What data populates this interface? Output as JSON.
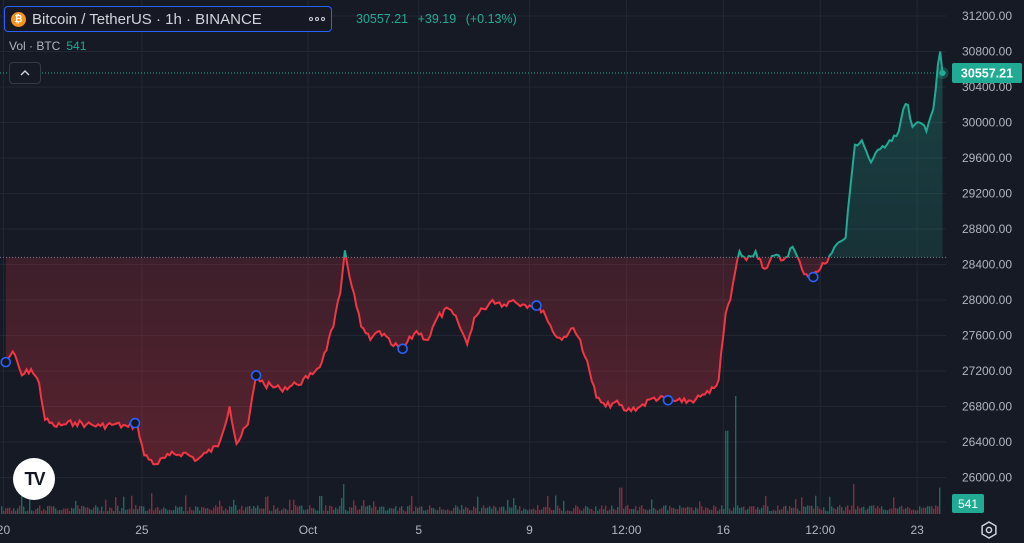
{
  "symbol": {
    "title": "Bitcoin / TetherUS · 1h · BINANCE",
    "coin_icon_glyph": "₿",
    "coin_color": "#f7931a"
  },
  "price_header": {
    "last": "30557.21",
    "change": "+39.19",
    "change_pct": "(+0.13%)"
  },
  "volume_legend": {
    "label": "Vol · BTC",
    "value": "541"
  },
  "logo": {
    "text": "TV"
  },
  "colors": {
    "up": "#22ab94",
    "down": "#f23645",
    "background": "#161a25",
    "grid": "#222733",
    "text": "#d1d4dc",
    "accent": "#2962ff"
  },
  "chart_data": {
    "type": "baseline-line",
    "baseline": 28480,
    "ylim": [
      25700,
      31350
    ],
    "y_ticks": [
      26000,
      26400,
      26800,
      27200,
      27600,
      28000,
      28400,
      28800,
      29200,
      29600,
      30000,
      30400,
      30800,
      31200
    ],
    "y_tick_labels": [
      "26000.00",
      "26400.00",
      "26800.00",
      "27200.00",
      "27600.00",
      "28000.00",
      "28400.00",
      "28800.00",
      "29200.00",
      "29600.00",
      "30000.00",
      "30400.00",
      "30800.00",
      "31200.00"
    ],
    "x_tick_labels": [
      "20",
      "25",
      "Oct",
      "5",
      "9",
      "12:00",
      "16",
      "12:00",
      "23"
    ],
    "x_tick_dates": [
      "2023-09-20",
      "2023-09-25",
      "2023-10-01",
      "2023-10-05",
      "2023-10-09",
      "2023-10-12 12:00",
      "2023-10-16",
      "2023-10-19 12:00",
      "2023-10-23"
    ],
    "x_range": [
      "2023-09-19 21:00",
      "2023-10-24 01:00"
    ],
    "last_price": 30557.21,
    "last_price_label": "30557.21",
    "volume_label": "541",
    "series": [
      {
        "points": [
          [
            "2023-09-20 02:00",
            27300
          ],
          [
            "2023-09-20 08:00",
            27420
          ],
          [
            "2023-09-20 16:00",
            27150
          ],
          [
            "2023-09-21 00:00",
            27220
          ],
          [
            "2023-09-21 07:00",
            27060
          ],
          [
            "2023-09-21 12:00",
            26650
          ],
          [
            "2023-09-21 20:00",
            26580
          ],
          [
            "2023-09-22 06:00",
            26600
          ],
          [
            "2023-09-22 14:00",
            26620
          ],
          [
            "2023-09-23 00:00",
            26600
          ],
          [
            "2023-09-23 12:00",
            26580
          ],
          [
            "2023-09-24 00:00",
            26600
          ],
          [
            "2023-09-24 12:00",
            26570
          ],
          [
            "2023-09-24 20:00",
            26600
          ],
          [
            "2023-09-25 02:00",
            26250
          ],
          [
            "2023-09-25 12:00",
            26150
          ],
          [
            "2023-09-26 00:00",
            26250
          ],
          [
            "2023-09-26 12:00",
            26280
          ],
          [
            "2023-09-27 00:00",
            26200
          ],
          [
            "2023-09-27 08:00",
            26280
          ],
          [
            "2023-09-27 18:00",
            26350
          ],
          [
            "2023-09-28 04:00",
            26800
          ],
          [
            "2023-09-28 10:00",
            26380
          ],
          [
            "2023-09-28 20:00",
            26600
          ],
          [
            "2023-09-29 03:00",
            27150
          ],
          [
            "2023-09-29 10:00",
            27050
          ],
          [
            "2023-09-30 00:00",
            27000
          ],
          [
            "2023-09-30 14:00",
            27050
          ],
          [
            "2023-10-01 00:00",
            27120
          ],
          [
            "2023-10-01 12:00",
            27300
          ],
          [
            "2023-10-01 22:00",
            27700
          ],
          [
            "2023-10-02 04:00",
            28080
          ],
          [
            "2023-10-02 08:00",
            28560
          ],
          [
            "2023-10-02 14:00",
            28150
          ],
          [
            "2023-10-02 22:00",
            27700
          ],
          [
            "2023-10-03 06:00",
            27550
          ],
          [
            "2023-10-03 14:00",
            27650
          ],
          [
            "2023-10-04 00:00",
            27500
          ],
          [
            "2023-10-04 10:00",
            27450
          ],
          [
            "2023-10-04 22:00",
            27650
          ],
          [
            "2023-10-05 08:00",
            27550
          ],
          [
            "2023-10-05 16:00",
            27800
          ],
          [
            "2023-10-06 02:00",
            27900
          ],
          [
            "2023-10-06 10:00",
            27750
          ],
          [
            "2023-10-06 18:00",
            27500
          ],
          [
            "2023-10-07 00:00",
            27800
          ],
          [
            "2023-10-07 08:00",
            27900
          ],
          [
            "2023-10-07 16:00",
            28000
          ],
          [
            "2023-10-08 02:00",
            27950
          ],
          [
            "2023-10-08 10:00",
            28000
          ],
          [
            "2023-10-08 18:00",
            27950
          ],
          [
            "2023-10-09 04:00",
            27950
          ],
          [
            "2023-10-09 12:00",
            27880
          ],
          [
            "2023-10-09 20:00",
            27650
          ],
          [
            "2023-10-10 04:00",
            27550
          ],
          [
            "2023-10-10 12:00",
            27680
          ],
          [
            "2023-10-10 20:00",
            27550
          ],
          [
            "2023-10-11 04:00",
            27200
          ],
          [
            "2023-10-11 10:00",
            26900
          ],
          [
            "2023-10-11 18:00",
            26800
          ],
          [
            "2023-10-12 02:00",
            26850
          ],
          [
            "2023-10-12 12:00",
            26750
          ],
          [
            "2023-10-13 00:00",
            26800
          ],
          [
            "2023-10-13 12:00",
            26900
          ],
          [
            "2023-10-14 00:00",
            26870
          ],
          [
            "2023-10-14 12:00",
            26850
          ],
          [
            "2023-10-15 00:00",
            26880
          ],
          [
            "2023-10-15 12:00",
            26950
          ],
          [
            "2023-10-15 20:00",
            27100
          ],
          [
            "2023-10-16 02:00",
            27850
          ],
          [
            "2023-10-16 06:00",
            28000
          ],
          [
            "2023-10-16 10:00",
            28300
          ],
          [
            "2023-10-16 14:00",
            28550
          ],
          [
            "2023-10-16 20:00",
            28450
          ],
          [
            "2023-10-17 04:00",
            28550
          ],
          [
            "2023-10-17 12:00",
            28350
          ],
          [
            "2023-10-17 20:00",
            28500
          ],
          [
            "2023-10-18 04:00",
            28450
          ],
          [
            "2023-10-18 12:00",
            28600
          ],
          [
            "2023-10-18 20:00",
            28350
          ],
          [
            "2023-10-19 04:00",
            28250
          ],
          [
            "2023-10-19 12:00",
            28350
          ],
          [
            "2023-10-19 20:00",
            28500
          ],
          [
            "2023-10-20 04:00",
            28650
          ],
          [
            "2023-10-20 10:00",
            28700
          ],
          [
            "2023-10-20 14:00",
            29250
          ],
          [
            "2023-10-20 18:00",
            29750
          ],
          [
            "2023-10-21 00:00",
            29800
          ],
          [
            "2023-10-21 08:00",
            29550
          ],
          [
            "2023-10-21 16:00",
            29700
          ],
          [
            "2023-10-22 00:00",
            29800
          ],
          [
            "2023-10-22 08:00",
            29900
          ],
          [
            "2023-10-22 12:00",
            30150
          ],
          [
            "2023-10-22 16:00",
            30200
          ],
          [
            "2023-10-22 20:00",
            29950
          ],
          [
            "2023-10-23 02:00",
            30000
          ],
          [
            "2023-10-23 08:00",
            29900
          ],
          [
            "2023-10-23 14:00",
            30150
          ],
          [
            "2023-10-23 18:00",
            30650
          ],
          [
            "2023-10-23 20:00",
            30800
          ],
          [
            "2023-10-23 22:00",
            30557.21
          ]
        ]
      }
    ],
    "volume_spikes": [
      [
        "2023-09-25 08:00",
        300
      ],
      [
        "2023-10-01 10:00",
        260
      ],
      [
        "2023-10-02 06:00",
        430
      ],
      [
        "2023-10-12 06:00",
        380
      ],
      [
        "2023-10-16 02:00",
        1200
      ],
      [
        "2023-10-16 10:00",
        1700
      ],
      [
        "2023-10-20 16:00",
        430
      ],
      [
        "2023-10-23 20:00",
        380
      ]
    ],
    "markers": [
      "2023-09-20 02:00",
      "2023-09-24 18:00",
      "2023-09-29 03:00",
      "2023-10-04 10:00",
      "2023-10-09 06:00",
      "2023-10-14 00:00",
      "2023-10-19 06:00"
    ],
    "grid": true
  }
}
